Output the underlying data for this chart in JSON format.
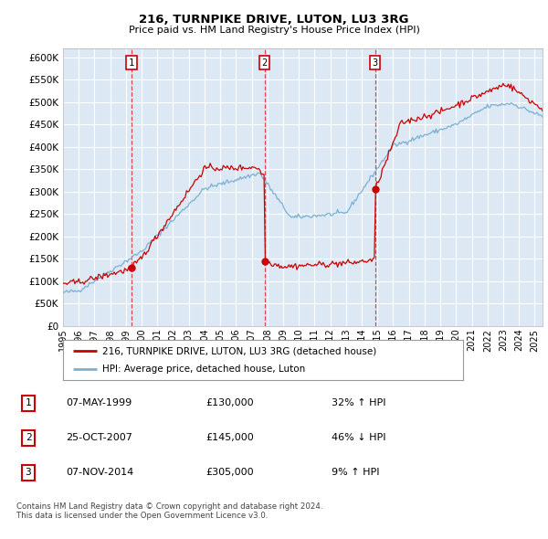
{
  "title": "216, TURNPIKE DRIVE, LUTON, LU3 3RG",
  "subtitle": "Price paid vs. HM Land Registry's House Price Index (HPI)",
  "ylim": [
    0,
    620000
  ],
  "yticks": [
    0,
    50000,
    100000,
    150000,
    200000,
    250000,
    300000,
    350000,
    400000,
    450000,
    500000,
    550000,
    600000
  ],
  "ytick_labels": [
    "£0",
    "£50K",
    "£100K",
    "£150K",
    "£200K",
    "£250K",
    "£300K",
    "£350K",
    "£400K",
    "£450K",
    "£500K",
    "£550K",
    "£600K"
  ],
  "background_color": "#dce9f5",
  "grid_color": "#ffffff",
  "hpi_color": "#7bafd4",
  "property_color": "#cc0000",
  "sale1_date": 1999.35,
  "sale1_price": 130000,
  "sale2_date": 2007.82,
  "sale2_price": 145000,
  "sale3_date": 2014.85,
  "sale3_price": 305000,
  "legend_property": "216, TURNPIKE DRIVE, LUTON, LU3 3RG (detached house)",
  "legend_hpi": "HPI: Average price, detached house, Luton",
  "table_rows": [
    [
      "1",
      "07-MAY-1999",
      "£130,000",
      "32% ↑ HPI"
    ],
    [
      "2",
      "25-OCT-2007",
      "£145,000",
      "46% ↓ HPI"
    ],
    [
      "3",
      "07-NOV-2014",
      "£305,000",
      "9% ↑ HPI"
    ]
  ],
  "footnote": "Contains HM Land Registry data © Crown copyright and database right 2024.\nThis data is licensed under the Open Government Licence v3.0."
}
